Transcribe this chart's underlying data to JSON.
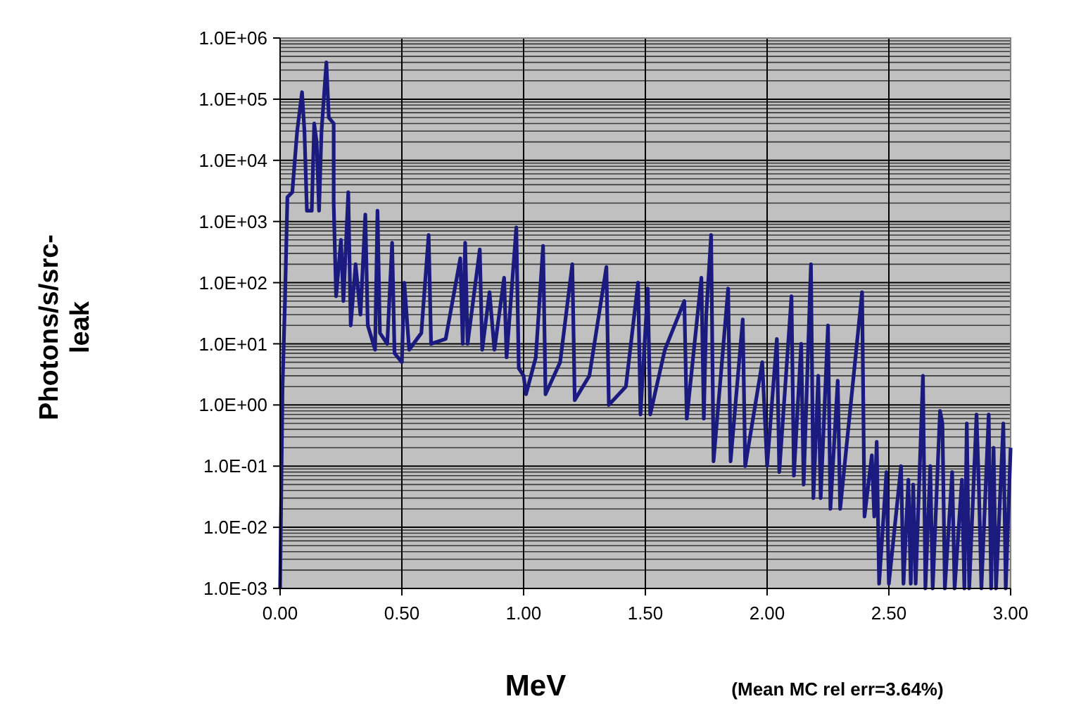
{
  "chart_data": {
    "type": "line",
    "xlabel": "MeV",
    "ylabel": "Photons/s/src-leak",
    "annotations": [
      "(Mean MC rel err=3.64%)"
    ],
    "log": "y",
    "grid": true,
    "marker": "none",
    "line_style": "solid",
    "xlim": [
      0,
      3
    ],
    "ylim": [
      0.001,
      1000000
    ],
    "xticks": [
      {
        "value": 0,
        "label": "0.00"
      },
      {
        "value": 0.5,
        "label": "0.50"
      },
      {
        "value": 1,
        "label": "1.00"
      },
      {
        "value": 1.5,
        "label": "1.50"
      },
      {
        "value": 2,
        "label": "2.00"
      },
      {
        "value": 2.5,
        "label": "2.50"
      },
      {
        "value": 3,
        "label": "3.00"
      }
    ],
    "yticks": [
      {
        "value": 0.001,
        "label": "1.0E-03"
      },
      {
        "value": 0.01,
        "label": "1.0E-02"
      },
      {
        "value": 0.1,
        "label": "1.0E-01"
      },
      {
        "value": 1,
        "label": "1.0E+00"
      },
      {
        "value": 10,
        "label": "1.0E+01"
      },
      {
        "value": 100,
        "label": "1.0E+02"
      },
      {
        "value": 1000,
        "label": "1.0E+03"
      },
      {
        "value": 10000,
        "label": "1.0E+04"
      },
      {
        "value": 100000,
        "label": "1.0E+05"
      },
      {
        "value": 1000000,
        "label": "1.0E+06"
      }
    ],
    "series": [
      {
        "color": "#1a1a7f",
        "x": [
          0,
          0.01,
          0.02,
          0.03,
          0.05,
          0.07,
          0.09,
          0.1,
          0.11,
          0.13,
          0.14,
          0.15,
          0.16,
          0.17,
          0.19,
          0.2,
          0.22,
          0.22,
          0.23,
          0.25,
          0.26,
          0.28,
          0.29,
          0.31,
          0.33,
          0.35,
          0.36,
          0.39,
          0.4,
          0.41,
          0.44,
          0.46,
          0.47,
          0.5,
          0.51,
          0.53,
          0.58,
          0.61,
          0.62,
          0.68,
          0.74,
          0.75,
          0.76,
          0.77,
          0.82,
          0.83,
          0.86,
          0.88,
          0.92,
          0.93,
          0.97,
          0.98,
          1.0,
          1.01,
          1.05,
          1.08,
          1.09,
          1.15,
          1.2,
          1.21,
          1.27,
          1.34,
          1.35,
          1.42,
          1.47,
          1.48,
          1.51,
          1.52,
          1.58,
          1.66,
          1.67,
          1.73,
          1.74,
          1.75,
          1.77,
          1.78,
          1.84,
          1.85,
          1.9,
          1.91,
          1.98,
          2.0,
          2.04,
          2.05,
          2.1,
          2.11,
          2.14,
          2.15,
          2.18,
          2.19,
          2.21,
          2.22,
          2.25,
          2.26,
          2.29,
          2.3,
          2.39,
          2.4,
          2.43,
          2.44,
          2.45,
          2.46,
          2.49,
          2.5,
          2.55,
          2.56,
          2.58,
          2.59,
          2.6,
          2.61,
          2.64,
          2.65,
          2.67,
          2.68,
          2.71,
          2.72,
          2.73,
          2.76,
          2.77,
          2.8,
          2.81,
          2.82,
          2.83,
          2.86,
          2.87,
          2.88,
          2.91,
          2.92,
          2.93,
          2.94,
          2.97,
          2.98,
          3.0
        ],
        "values": [
          0.001,
          2,
          50,
          2500,
          3000,
          30000,
          130000,
          30000,
          1500,
          1500,
          40000,
          20000,
          1500,
          30000,
          400000,
          50000,
          40000,
          2000,
          60,
          500,
          50,
          3000,
          20,
          200,
          30,
          1300,
          20,
          8,
          1500,
          15,
          10,
          450,
          7,
          5,
          100,
          8,
          15,
          600,
          10,
          12,
          250,
          10,
          450,
          10,
          350,
          8,
          70,
          8,
          120,
          6,
          800,
          4,
          3,
          1.5,
          6,
          400,
          1.5,
          5,
          200,
          1.2,
          3,
          180,
          1,
          2,
          100,
          0.7,
          80,
          0.7,
          8,
          50,
          0.6,
          120,
          0.6,
          30,
          600,
          0.12,
          80,
          0.12,
          25,
          0.1,
          5,
          0.1,
          12,
          0.08,
          60,
          0.07,
          10,
          0.05,
          200,
          0.03,
          3,
          0.03,
          20,
          0.02,
          2.5,
          0.02,
          70,
          0.015,
          0.15,
          0.015,
          0.25,
          0.0012,
          0.08,
          0.0012,
          0.1,
          0.0012,
          0.06,
          0.0012,
          0.05,
          0.0012,
          3,
          0.001,
          0.1,
          0.001,
          0.8,
          0.5,
          0.001,
          0.08,
          0.001,
          0.06,
          0.001,
          0.5,
          0.001,
          0.7,
          0.04,
          0.001,
          0.7,
          0.001,
          0.2,
          0.001,
          0.5,
          0.001,
          0.2
        ]
      }
    ]
  }
}
